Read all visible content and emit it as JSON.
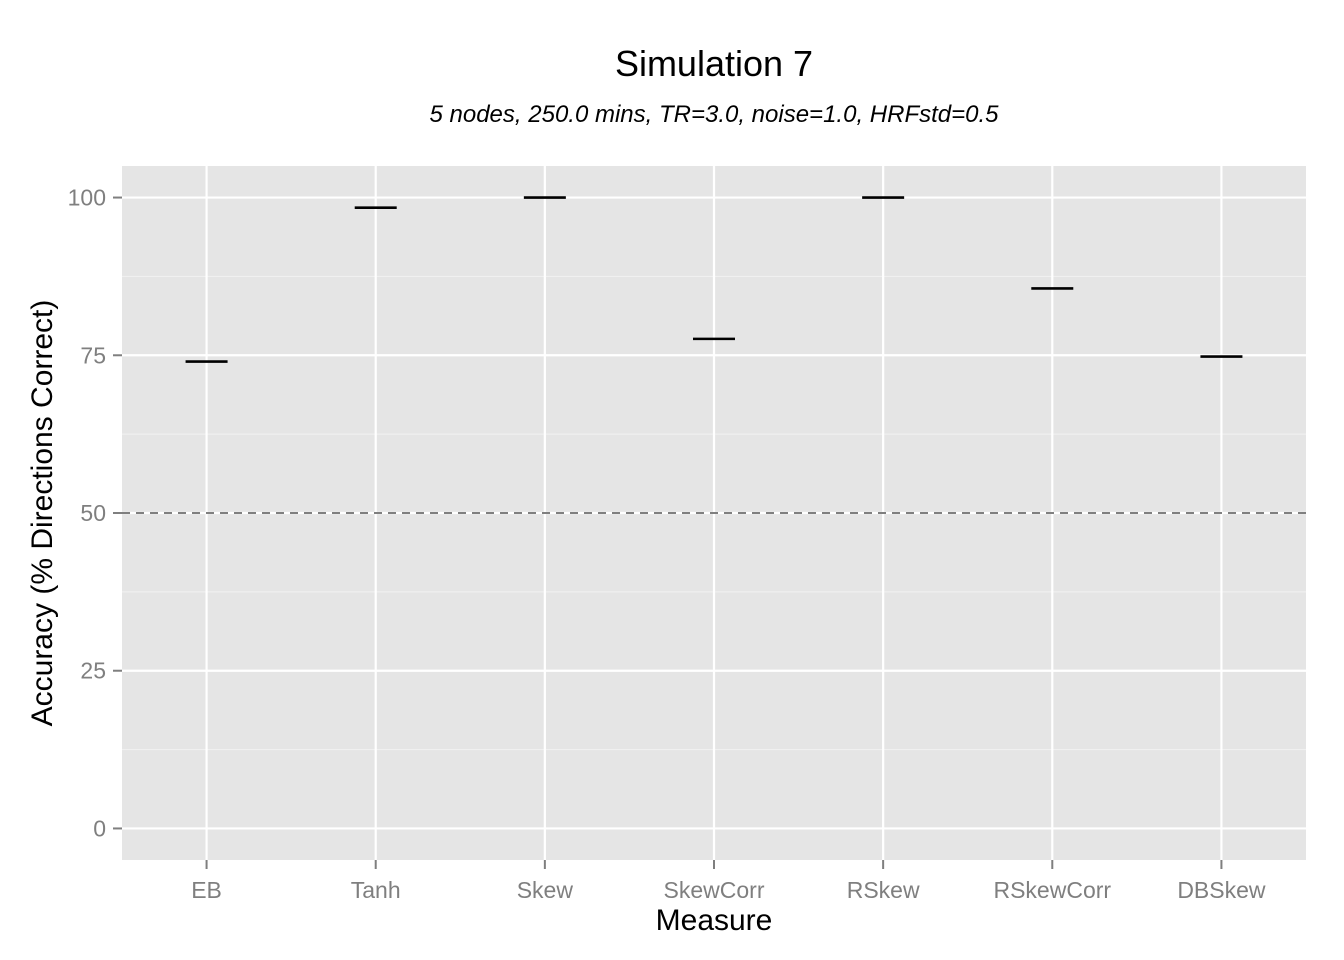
{
  "chart_data": {
    "type": "crossbar",
    "title": "Simulation 7",
    "subtitle": "5 nodes, 250.0 mins, TR=3.0, noise=1.0, HRFstd=0.5",
    "xlabel": "Measure",
    "ylabel": "Accuracy (% Directions Correct)",
    "categories": [
      "EB",
      "Tanh",
      "Skew",
      "SkewCorr",
      "RSkew",
      "RSkewCorr",
      "DBSkew"
    ],
    "values": [
      74.0,
      98.4,
      100.0,
      77.6,
      100.0,
      85.6,
      74.8
    ],
    "yticks": [
      0,
      25,
      50,
      75,
      100
    ],
    "ytick_labels": [
      "0",
      "25",
      "50",
      "75",
      "100"
    ],
    "ylim": [
      -5,
      105
    ],
    "reference_line": {
      "y": 50,
      "style": "dashed",
      "color": "#7f7f7f"
    },
    "grid": true,
    "colors": {
      "panel": "#e5e5e5",
      "grid": "#ffffff",
      "mark": "#000000",
      "tick_text": "#7f7f7f"
    }
  }
}
